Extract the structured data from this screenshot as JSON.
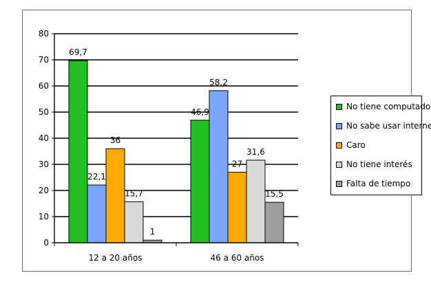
{
  "chart_data": {
    "type": "bar",
    "categories": [
      "12 a 20 años",
      "46 a 60 años"
    ],
    "ylim": [
      0,
      80
    ],
    "yticks": [
      0,
      10,
      20,
      30,
      40,
      50,
      60,
      70,
      80
    ],
    "grid": true,
    "legend_position": "right",
    "series": [
      {
        "name": "No tiene computador",
        "color": "#1fbf1f",
        "values": [
          69.7,
          46.9
        ],
        "labels": [
          "69,7",
          "46,9"
        ]
      },
      {
        "name": "No sabe usar internet",
        "color": "#7aa6ff",
        "values": [
          22.1,
          58.2
        ],
        "labels": [
          "22,1",
          "58,2"
        ]
      },
      {
        "name": "Caro",
        "color": "#ffaa00",
        "values": [
          36,
          27
        ],
        "labels": [
          "36",
          "27"
        ]
      },
      {
        "name": "No tiene interés",
        "color": "#d9d9d9",
        "values": [
          15.7,
          31.6
        ],
        "labels": [
          "15,7",
          "31,6"
        ]
      },
      {
        "name": "Falta de tiempo",
        "color": "#9e9e9e",
        "values": [
          1,
          15.5
        ],
        "labels": [
          "1",
          "15,5"
        ]
      }
    ]
  }
}
